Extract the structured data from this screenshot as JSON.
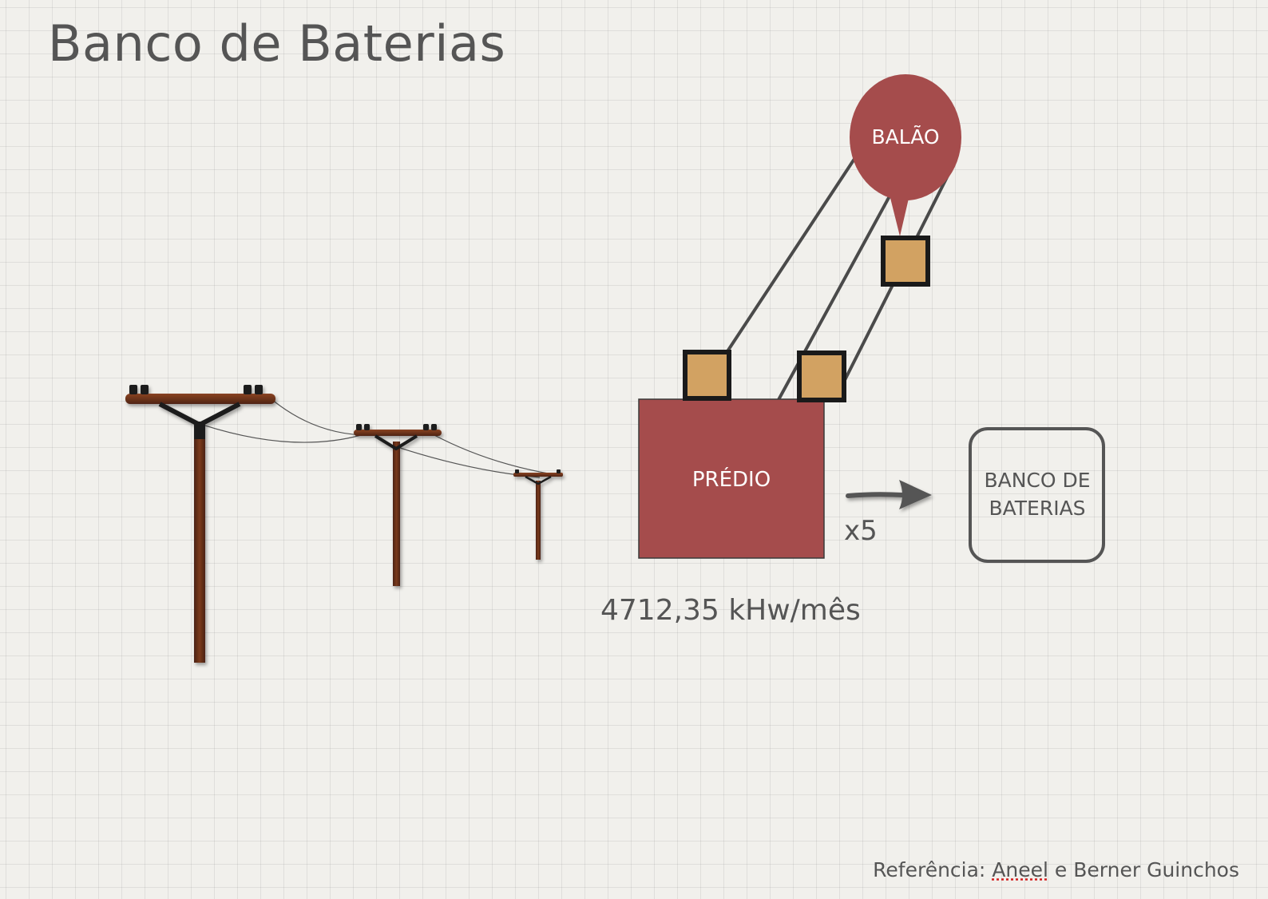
{
  "slide": {
    "title": "Banco de Baterias",
    "energy_label": "4712,35 kHw/mês",
    "reference": {
      "prefix": "Referência:",
      "link": "Aneel",
      "suffix": "e Berner Guinchos"
    }
  },
  "diagram": {
    "balloon": {
      "label": "BALÃO",
      "color": "#a54c4c"
    },
    "building": {
      "label": "PRÉDIO",
      "color": "#a54c4c"
    },
    "multiplier": "x5",
    "battery_bank": {
      "line1": "BANCO DE",
      "line2": "BATERIAS"
    },
    "connector_color": "#d2a262",
    "poles": [
      "utility-pole-large",
      "utility-pole-medium",
      "utility-pole-small"
    ]
  }
}
